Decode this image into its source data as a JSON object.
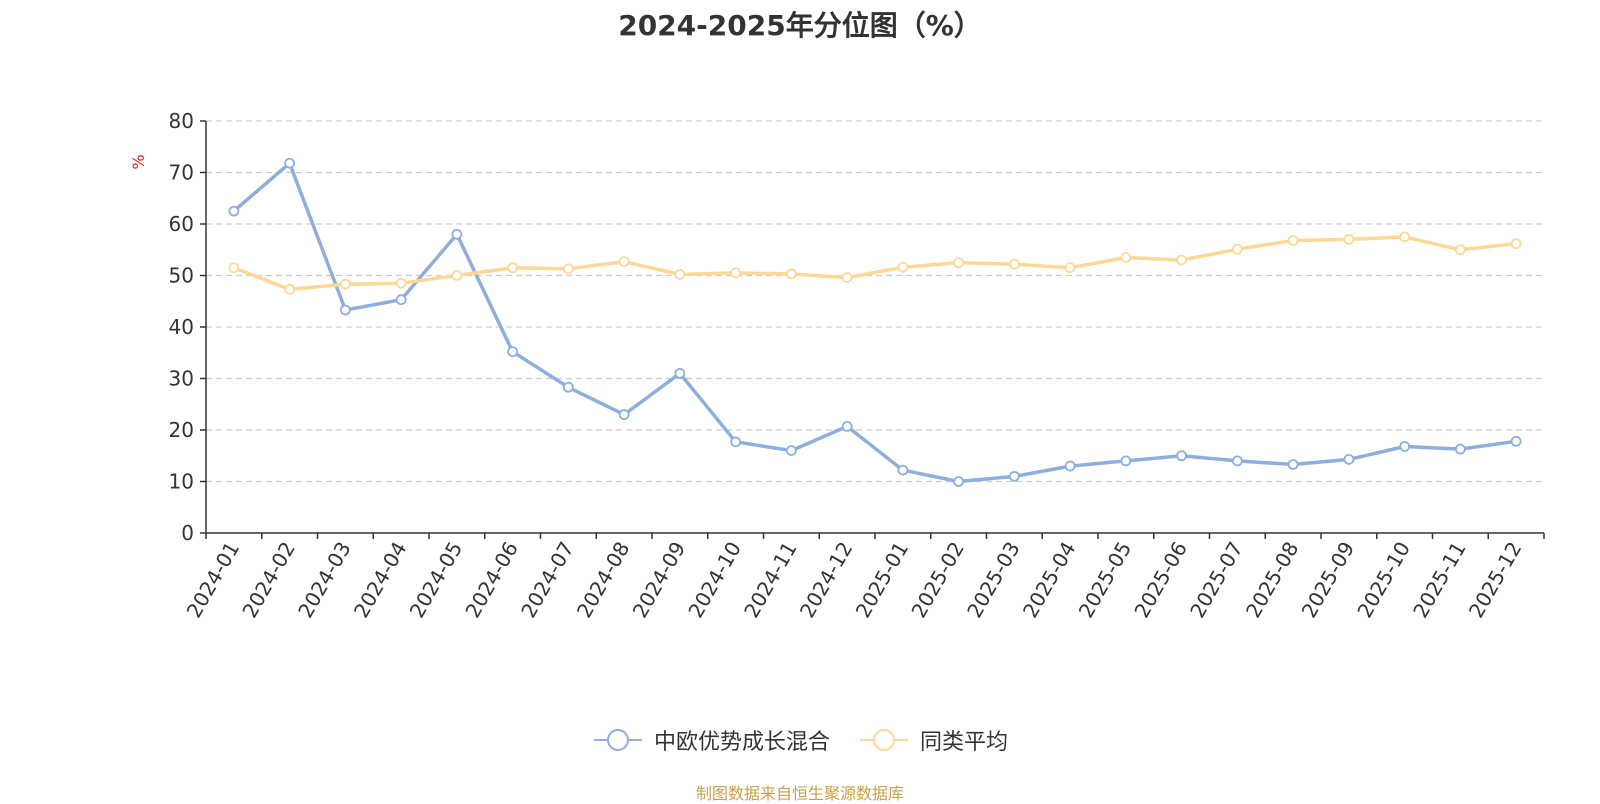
{
  "chart_data": {
    "type": "line",
    "title": "2024-2025年分位图（%）",
    "ylabel": "%",
    "ylim": [
      0,
      80
    ],
    "yticks": [
      0,
      10,
      20,
      30,
      40,
      50,
      60,
      70,
      80
    ],
    "grid": true,
    "legend_position": "bottom",
    "categories": [
      "2024-01",
      "2024-02",
      "2024-03",
      "2024-04",
      "2024-05",
      "2024-06",
      "2024-07",
      "2024-08",
      "2024-09",
      "2024-10",
      "2024-11",
      "2024-12",
      "2025-01",
      "2025-02",
      "2025-03",
      "2025-04",
      "2025-05",
      "2025-06",
      "2025-07",
      "2025-08",
      "2025-09",
      "2025-10",
      "2025-11",
      "2025-12"
    ],
    "series": [
      {
        "name": "中欧优势成长混合",
        "color": "#8eaedb",
        "values": [
          62.5,
          71.8,
          43.3,
          45.3,
          58.0,
          35.2,
          28.3,
          23.0,
          31.0,
          17.7,
          16.0,
          20.7,
          12.2,
          10.0,
          11.0,
          13.0,
          14.0,
          15.0,
          14.0,
          13.3,
          14.3,
          16.8,
          16.3,
          17.8
        ]
      },
      {
        "name": "同类平均",
        "color": "#fcd896",
        "values": [
          51.5,
          47.3,
          48.3,
          48.5,
          50.0,
          51.5,
          51.3,
          52.7,
          50.2,
          50.5,
          50.3,
          49.6,
          51.6,
          52.5,
          52.2,
          51.5,
          53.5,
          53.0,
          55.1,
          56.8,
          57.0,
          57.5,
          55.0,
          56.2
        ]
      }
    ],
    "source": "制图数据来自恒生聚源数据库"
  }
}
